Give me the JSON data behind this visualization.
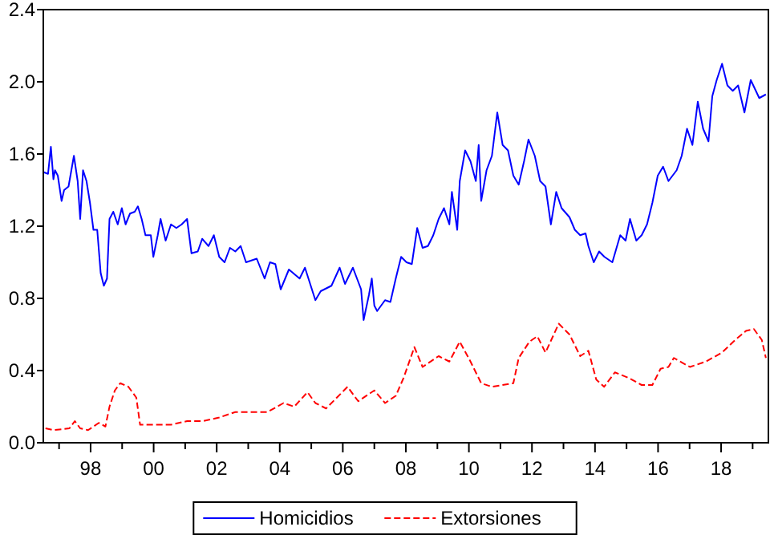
{
  "chart_data": {
    "type": "line",
    "xlim": [
      1996.5,
      2019.5
    ],
    "ylim": [
      0,
      2.4
    ],
    "xticks": [
      {
        "value": 1997,
        "label": null
      },
      {
        "value": 1998,
        "label": "98"
      },
      {
        "value": 1999,
        "label": null
      },
      {
        "value": 2000,
        "label": "00"
      },
      {
        "value": 2001,
        "label": null
      },
      {
        "value": 2002,
        "label": "02"
      },
      {
        "value": 2003,
        "label": null
      },
      {
        "value": 2004,
        "label": "04"
      },
      {
        "value": 2005,
        "label": null
      },
      {
        "value": 2006,
        "label": "06"
      },
      {
        "value": 2007,
        "label": null
      },
      {
        "value": 2008,
        "label": "08"
      },
      {
        "value": 2009,
        "label": null
      },
      {
        "value": 2010,
        "label": "10"
      },
      {
        "value": 2011,
        "label": null
      },
      {
        "value": 2012,
        "label": "12"
      },
      {
        "value": 2013,
        "label": null
      },
      {
        "value": 2014,
        "label": "14"
      },
      {
        "value": 2015,
        "label": null
      },
      {
        "value": 2016,
        "label": "16"
      },
      {
        "value": 2017,
        "label": null
      },
      {
        "value": 2018,
        "label": "18"
      },
      {
        "value": 2019,
        "label": null
      }
    ],
    "yticks": [
      {
        "value": 0,
        "label": "0.0"
      },
      {
        "value": 0.4,
        "label": "0.4"
      },
      {
        "value": 0.8,
        "label": "0.8"
      },
      {
        "value": 1.2,
        "label": "1.2"
      },
      {
        "value": 1.6,
        "label": "1.6"
      },
      {
        "value": 2.0,
        "label": "2.0"
      },
      {
        "value": 2.4,
        "label": "2.4"
      }
    ],
    "grid": false,
    "legend": "bottom",
    "marker": "none",
    "series": [
      {
        "name": "Homicidios",
        "color": "#0000ff",
        "line_style": "solid",
        "x": [
          1996.5,
          1996.65,
          1996.74,
          1996.82,
          1996.87,
          1996.96,
          1997.08,
          1997.16,
          1997.3,
          1997.47,
          1997.59,
          1997.67,
          1997.76,
          1997.87,
          1997.98,
          1998.09,
          1998.21,
          1998.32,
          1998.42,
          1998.52,
          1998.6,
          1998.72,
          1998.86,
          1998.99,
          1999.11,
          1999.25,
          1999.4,
          1999.5,
          1999.62,
          1999.74,
          1999.91,
          1999.99,
          2000.13,
          2000.22,
          2000.38,
          2000.55,
          2000.72,
          2000.89,
          2001.06,
          2001.2,
          2001.4,
          2001.54,
          2001.74,
          2001.91,
          2002.08,
          2002.25,
          2002.42,
          2002.59,
          2002.76,
          2002.93,
          2003.27,
          2003.52,
          2003.69,
          2003.86,
          2004.03,
          2004.29,
          2004.63,
          2004.8,
          2005.13,
          2005.3,
          2005.64,
          2005.9,
          2006.07,
          2006.32,
          2006.58,
          2006.66,
          2006.83,
          2006.92,
          2007.0,
          2007.09,
          2007.34,
          2007.51,
          2007.68,
          2007.85,
          2008.02,
          2008.19,
          2008.36,
          2008.53,
          2008.7,
          2008.87,
          2009.04,
          2009.21,
          2009.38,
          2009.46,
          2009.63,
          2009.71,
          2009.88,
          2010.05,
          2010.22,
          2010.31,
          2010.39,
          2010.56,
          2010.73,
          2010.9,
          2011.07,
          2011.24,
          2011.41,
          2011.58,
          2011.75,
          2011.89,
          2012.09,
          2012.26,
          2012.43,
          2012.6,
          2012.77,
          2012.94,
          2013.19,
          2013.36,
          2013.53,
          2013.7,
          2013.79,
          2013.96,
          2014.13,
          2014.3,
          2014.55,
          2014.8,
          2014.97,
          2015.11,
          2015.31,
          2015.48,
          2015.65,
          2015.82,
          2015.99,
          2016.16,
          2016.33,
          2016.59,
          2016.75,
          2016.92,
          2017.09,
          2017.26,
          2017.43,
          2017.6,
          2017.72,
          2017.86,
          2018.03,
          2018.2,
          2018.37,
          2018.54,
          2018.74,
          2018.94,
          2019.21,
          2019.42
        ],
        "values": [
          1.5,
          1.49,
          1.64,
          1.46,
          1.51,
          1.48,
          1.34,
          1.4,
          1.42,
          1.59,
          1.45,
          1.24,
          1.51,
          1.45,
          1.33,
          1.18,
          1.18,
          0.94,
          0.87,
          0.91,
          1.24,
          1.28,
          1.21,
          1.3,
          1.21,
          1.27,
          1.28,
          1.31,
          1.24,
          1.15,
          1.15,
          1.03,
          1.15,
          1.24,
          1.12,
          1.21,
          1.19,
          1.21,
          1.24,
          1.05,
          1.06,
          1.13,
          1.09,
          1.15,
          1.03,
          1.0,
          1.08,
          1.06,
          1.09,
          1.0,
          1.02,
          0.91,
          1.0,
          0.99,
          0.85,
          0.96,
          0.91,
          0.97,
          0.79,
          0.84,
          0.87,
          0.97,
          0.88,
          0.97,
          0.85,
          0.68,
          0.82,
          0.91,
          0.76,
          0.73,
          0.79,
          0.78,
          0.91,
          1.03,
          1.0,
          0.99,
          1.19,
          1.08,
          1.09,
          1.15,
          1.24,
          1.3,
          1.21,
          1.39,
          1.18,
          1.45,
          1.62,
          1.56,
          1.45,
          1.65,
          1.34,
          1.51,
          1.59,
          1.83,
          1.65,
          1.62,
          1.48,
          1.43,
          1.56,
          1.68,
          1.59,
          1.45,
          1.42,
          1.21,
          1.39,
          1.3,
          1.25,
          1.18,
          1.15,
          1.16,
          1.09,
          1.0,
          1.06,
          1.03,
          1.0,
          1.15,
          1.12,
          1.24,
          1.12,
          1.15,
          1.21,
          1.33,
          1.48,
          1.53,
          1.45,
          1.51,
          1.59,
          1.74,
          1.65,
          1.89,
          1.74,
          1.67,
          1.92,
          2.01,
          2.1,
          1.98,
          1.95,
          1.98,
          1.83,
          2.01,
          1.91,
          1.93
        ]
      },
      {
        "name": "Extorsiones",
        "color": "#ff0000",
        "line_style": "dashed",
        "x": [
          1996.57,
          1996.82,
          1997.33,
          1997.5,
          1997.67,
          1997.92,
          1998.26,
          1998.47,
          1998.6,
          1998.77,
          1998.94,
          1999.2,
          1999.45,
          1999.57,
          2000.05,
          2000.55,
          2001.06,
          2001.57,
          2002.08,
          2002.59,
          2003.1,
          2003.61,
          2004.12,
          2004.46,
          2004.88,
          2005.13,
          2005.47,
          2005.81,
          2006.15,
          2006.49,
          2007.0,
          2007.34,
          2007.68,
          2007.93,
          2008.27,
          2008.53,
          2009.04,
          2009.38,
          2009.71,
          2010.05,
          2010.39,
          2010.73,
          2011.41,
          2011.58,
          2011.92,
          2012.17,
          2012.43,
          2012.85,
          2013.19,
          2013.53,
          2013.79,
          2014.04,
          2014.29,
          2014.63,
          2015.06,
          2015.48,
          2015.82,
          2016.08,
          2016.33,
          2016.5,
          2017.01,
          2017.52,
          2018.03,
          2018.45,
          2018.79,
          2019.04,
          2019.29,
          2019.42
        ],
        "values": [
          0.08,
          0.07,
          0.08,
          0.12,
          0.08,
          0.07,
          0.11,
          0.09,
          0.2,
          0.29,
          0.33,
          0.31,
          0.25,
          0.1,
          0.1,
          0.1,
          0.12,
          0.12,
          0.14,
          0.17,
          0.17,
          0.17,
          0.22,
          0.2,
          0.28,
          0.22,
          0.19,
          0.25,
          0.31,
          0.23,
          0.29,
          0.22,
          0.26,
          0.36,
          0.53,
          0.42,
          0.48,
          0.45,
          0.56,
          0.45,
          0.33,
          0.31,
          0.33,
          0.47,
          0.56,
          0.59,
          0.5,
          0.66,
          0.6,
          0.48,
          0.51,
          0.35,
          0.31,
          0.39,
          0.36,
          0.32,
          0.32,
          0.41,
          0.42,
          0.47,
          0.42,
          0.45,
          0.5,
          0.57,
          0.62,
          0.63,
          0.57,
          0.47
        ]
      }
    ]
  }
}
